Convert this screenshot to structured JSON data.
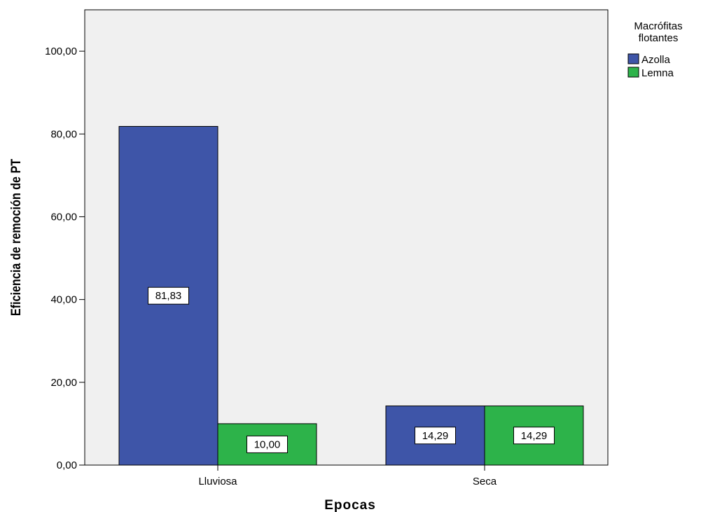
{
  "chart_data": {
    "type": "bar",
    "categories": [
      "Lluviosa",
      "Seca"
    ],
    "series": [
      {
        "name": "Azolla",
        "values": [
          81.83,
          14.29
        ],
        "color": "#3e55a8",
        "labels": [
          "81,83",
          "14,29"
        ]
      },
      {
        "name": "Lemna",
        "values": [
          10.0,
          14.29
        ],
        "color": "#2db34a",
        "labels": [
          "10,00",
          "14,29"
        ]
      }
    ],
    "xlabel": "Epocas",
    "ylabel": "Eficiencia de remoción de PT",
    "ylim": [
      0,
      110
    ],
    "yticks": [
      0,
      20,
      40,
      60,
      80,
      100
    ],
    "ytick_labels": [
      "0,00",
      "20,00",
      "40,00",
      "60,00",
      "80,00",
      "100,00"
    ],
    "legend_title": [
      "Macrófitas",
      "flotantes"
    ],
    "legend_position": "top-right",
    "plot_background": "#f0f0f0",
    "grid": false
  }
}
